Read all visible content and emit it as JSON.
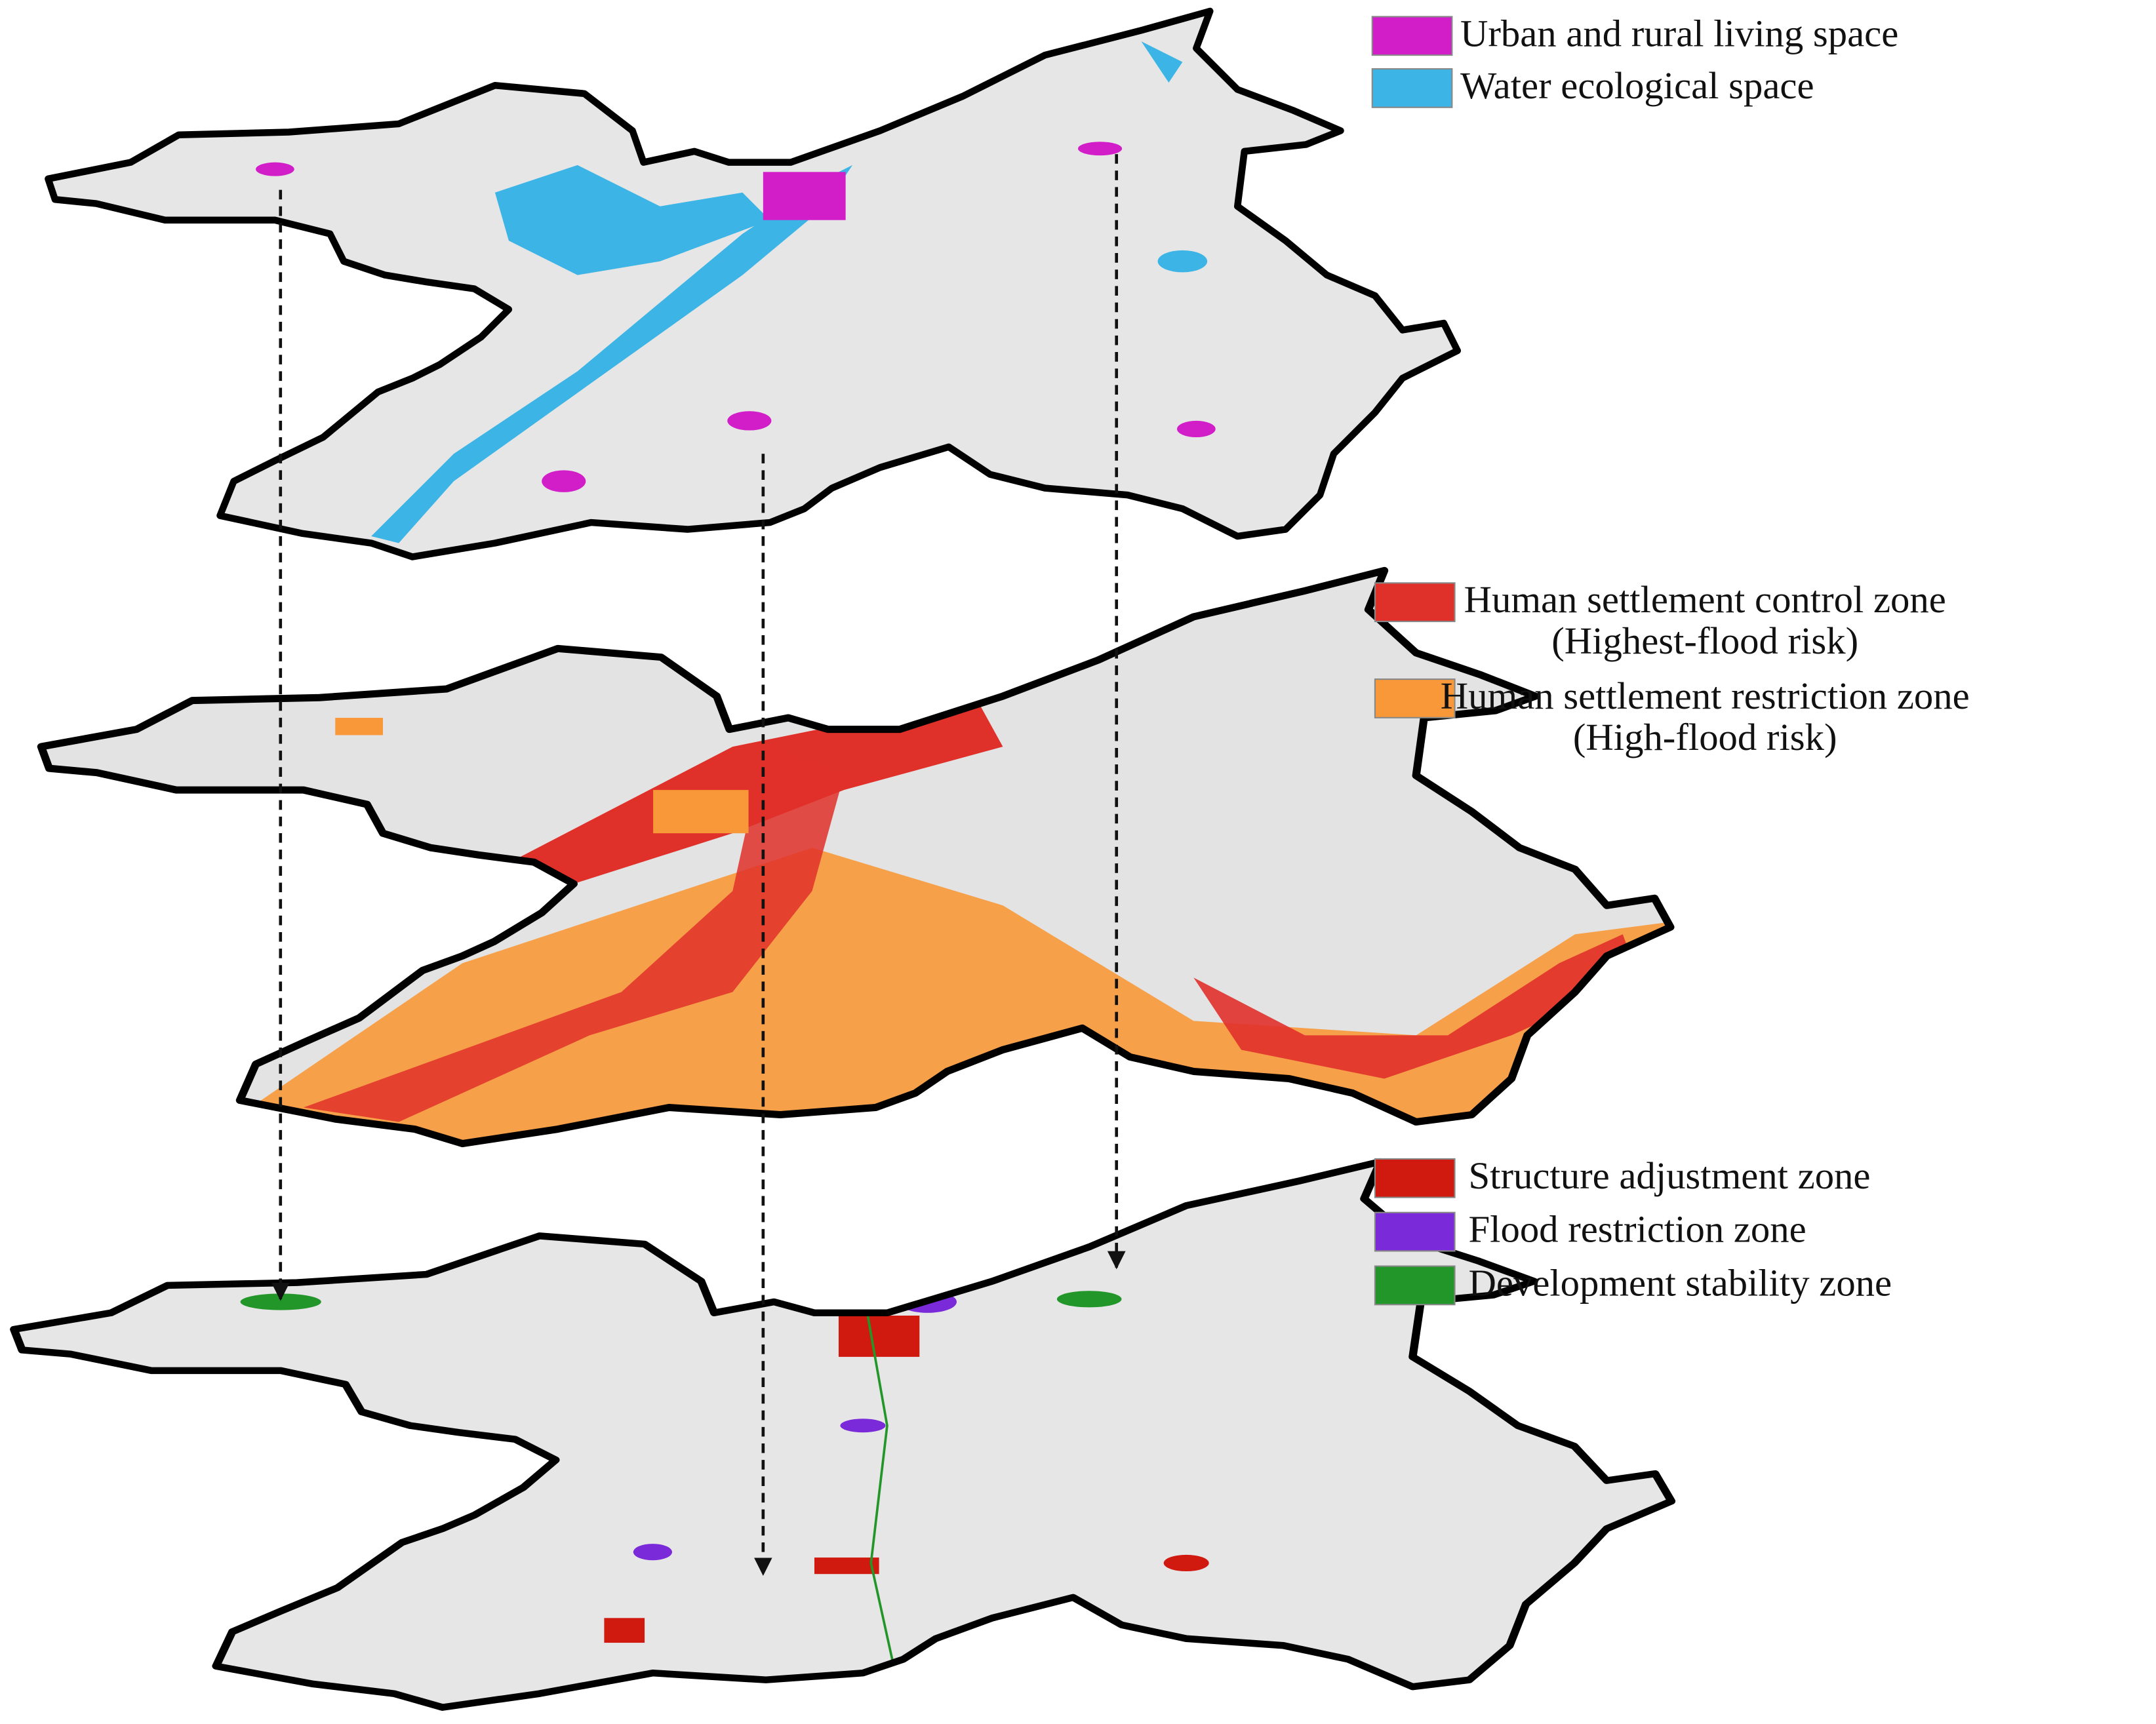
{
  "layers": [
    {
      "legend": [
        {
          "label": "Urban and rural living space",
          "color": "#d21ec8"
        },
        {
          "label": "Water ecological space",
          "color": "#3cb4e6"
        }
      ]
    },
    {
      "legend": [
        {
          "label": "Human settlement control zone",
          "note": "(Highest-flood risk)",
          "color": "#e0302a"
        },
        {
          "label": "Human settlement restriction zone",
          "note": "(High-flood risk)",
          "color": "#f89838"
        }
      ]
    },
    {
      "legend": [
        {
          "label": "Structure adjustment zone",
          "color": "#d01a10"
        },
        {
          "label": "Flood restriction zone",
          "color": "#7a2ad8"
        },
        {
          "label": "Development stability zone",
          "color": "#23962a"
        }
      ]
    }
  ]
}
